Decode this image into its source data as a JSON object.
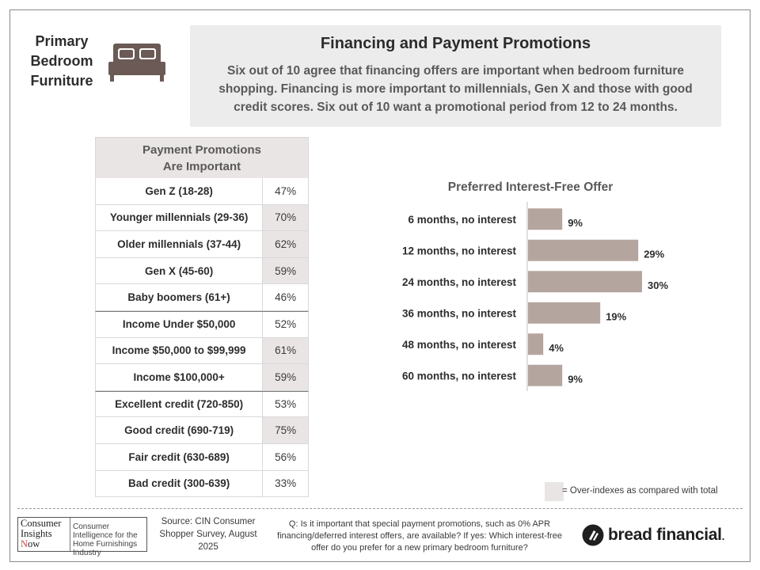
{
  "category": {
    "line1": "Primary",
    "line2": "Bedroom",
    "line3": "Furniture"
  },
  "icons": {
    "bed": "bed-icon",
    "brand": "bread-financial-logo"
  },
  "header": {
    "title": "Financing and Payment Promotions",
    "description": "Six out of 10 agree that financing offers are important when bedroom furniture shopping. Financing is more important to millennials, Gen X and those with good credit scores. Six out of 10 want a promotional period from 12 to 24 months."
  },
  "table": {
    "title_line1": "Payment Promotions",
    "title_line2": "Are Important",
    "rows": [
      {
        "label": "Gen Z (18-28)",
        "value": "47%",
        "over_index": false
      },
      {
        "label": "Younger millennials (29-36)",
        "value": "70%",
        "over_index": true
      },
      {
        "label": "Older millennials (37-44)",
        "value": "62%",
        "over_index": true
      },
      {
        "label": "Gen X (45-60)",
        "value": "59%",
        "over_index": true
      },
      {
        "label": "Baby boomers (61+)",
        "value": "46%",
        "over_index": false
      },
      {
        "label": "Income Under $50,000",
        "value": "52%",
        "over_index": false
      },
      {
        "label": "Income $50,000 to $99,999",
        "value": "61%",
        "over_index": true
      },
      {
        "label": "Income $100,000+",
        "value": "59%",
        "over_index": true
      },
      {
        "label": "Excellent credit (720-850)",
        "value": "53%",
        "over_index": false
      },
      {
        "label": "Good credit (690-719)",
        "value": "75%",
        "over_index": true
      },
      {
        "label": "Fair credit (630-689)",
        "value": "56%",
        "over_index": false
      },
      {
        "label": "Bad credit (300-639)",
        "value": "33%",
        "over_index": false
      }
    ]
  },
  "chart_data": {
    "type": "bar",
    "orientation": "horizontal",
    "title": "Preferred Interest-Free Offer",
    "categories": [
      "6 months, no interest",
      "12 months, no interest",
      "24 months, no interest",
      "36 months, no interest",
      "48 months, no interest",
      "60 months, no interest"
    ],
    "values": [
      9,
      29,
      30,
      19,
      4,
      9
    ],
    "value_labels": [
      "9%",
      "29%",
      "30%",
      "19%",
      "4%",
      "9%"
    ],
    "unit": "%",
    "xlim": [
      0,
      30
    ],
    "grid": false,
    "bar_color": "#b5a59f"
  },
  "legend": {
    "text": "= Over-indexes as compared with total",
    "color": "#e9e5e4"
  },
  "footer": {
    "logo_left_line1": "Consumer",
    "logo_left_line2": "Insights",
    "logo_left_line3_initial": "N",
    "logo_left_line3_rest": "ow",
    "logo_right": "Consumer Intelligence for the Home Furnishings Industry",
    "source": "Source: CIN Consumer Shopper Survey, August 2025",
    "question": "Q: Is it important that special payment promotions, such as 0% APR financing/deferred interest offers, are available? If yes: Which interest-free offer do you prefer for a new primary bedroom furniture?",
    "brand": "bread financial",
    "brand_mark": "."
  }
}
